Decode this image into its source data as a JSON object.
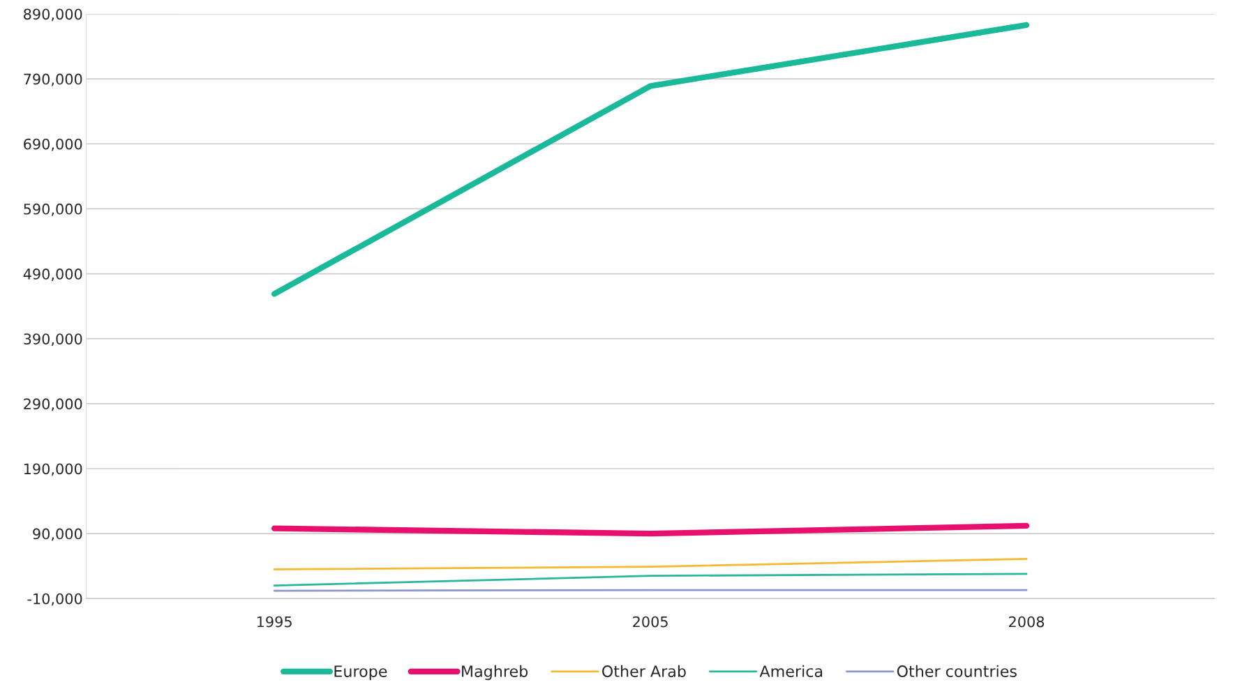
{
  "chart_data": {
    "type": "line",
    "categories": [
      "1995",
      "2005",
      "2008"
    ],
    "series": [
      {
        "name": "Europe",
        "color": "#1ab99a",
        "values": [
          459000,
          779000,
          873000
        ]
      },
      {
        "name": "Maghreb",
        "color": "#e8106e",
        "values": [
          98000,
          90000,
          102000
        ]
      },
      {
        "name": "Other Arab",
        "color": "#f5b82e",
        "values": [
          35000,
          39000,
          51000
        ]
      },
      {
        "name": "America",
        "color": "#2bb59a",
        "values": [
          10000,
          25000,
          28000
        ]
      },
      {
        "name": "Other countries",
        "color": "#8c95cc",
        "values": [
          2000,
          3000,
          3000
        ]
      }
    ],
    "ylim": [
      -10000,
      890000
    ],
    "yticks": [
      {
        "value": -10000,
        "label": "-10,000"
      },
      {
        "value": 90000,
        "label": "90,000"
      },
      {
        "value": 190000,
        "label": "190,000"
      },
      {
        "value": 290000,
        "label": "290,000"
      },
      {
        "value": 390000,
        "label": "390,000"
      },
      {
        "value": 490000,
        "label": "490,000"
      },
      {
        "value": 590000,
        "label": "590,000"
      },
      {
        "value": 690000,
        "label": "690,000"
      },
      {
        "value": 790000,
        "label": "790,000"
      },
      {
        "value": 890000,
        "label": "890,000"
      }
    ],
    "grid": "y",
    "legend": "bottom",
    "marker": "none",
    "line_style": "solid"
  }
}
